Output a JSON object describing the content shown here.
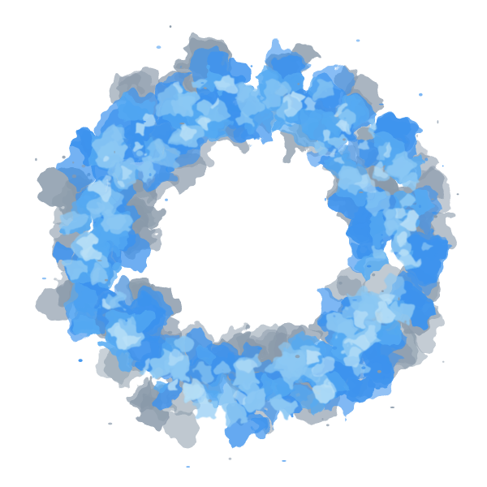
{
  "image": {
    "subject": "blue-smoke-ring-icon",
    "background_color": "#ffffff",
    "colors": {
      "smoke_gray": "#8a9aaa",
      "deep_blue": "#3d93ee",
      "mid_blue": "#55aaf2",
      "light_blue": "#8cc8f3",
      "pale_blue": "#b9e0f7"
    }
  }
}
